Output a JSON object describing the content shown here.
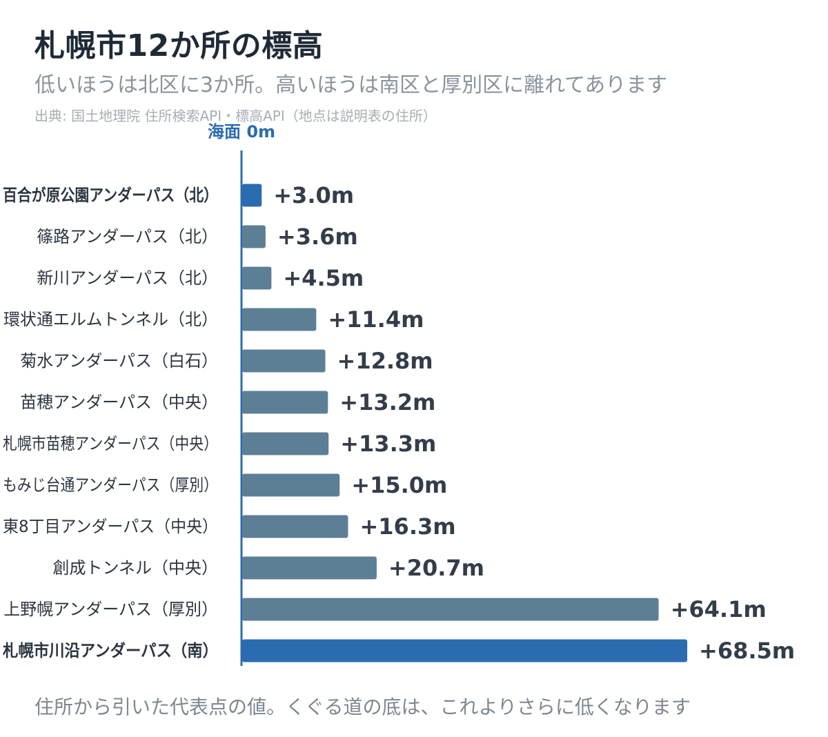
{
  "header": {
    "title": "札幌市12か所の標高",
    "subtitle": "低いほうは北区に3か所。高いほうは南区と厚別区に離れてあります",
    "source": "出典: 国土地理院 住所検索API・標高API（地点は説明表の住所）"
  },
  "footnote": "住所から引いた代表点の値。くぐる道の底は、これよりさらに低くなります",
  "colors": {
    "highlight": "#2b6cb0",
    "bar": "#5d7f96",
    "axis": "#2b6cb0"
  },
  "chart_data": {
    "type": "bar",
    "orientation": "horizontal",
    "baseline_label": "海面 0m",
    "unit": "m",
    "categories": [
      "百合が原公園アンダーパス（北）",
      "篠路アンダーパス（北）",
      "新川アンダーパス（北）",
      "環状通エルムトンネル（北）",
      "菊水アンダーパス（白石）",
      "苗穂アンダーパス（中央）",
      "札幌市苗穂アンダーパス（中央）",
      "もみじ台通アンダーパス（厚別）",
      "東8丁目アンダーパス（中央）",
      "創成トンネル（中央）",
      "上野幌アンダーパス（厚別）",
      "札幌市川沿アンダーパス（南）"
    ],
    "values": [
      3.0,
      3.6,
      4.5,
      11.4,
      12.8,
      13.2,
      13.3,
      15.0,
      16.3,
      20.7,
      64.1,
      68.5
    ],
    "value_labels": [
      "+3.0m",
      "+3.6m",
      "+4.5m",
      "+11.4m",
      "+12.8m",
      "+13.2m",
      "+13.3m",
      "+15.0m",
      "+16.3m",
      "+20.7m",
      "+64.1m",
      "+68.5m"
    ],
    "highlighted": [
      true,
      false,
      false,
      false,
      false,
      false,
      false,
      false,
      false,
      false,
      false,
      true
    ],
    "xlim": [
      0,
      68.5
    ],
    "grid": false,
    "legend": false
  }
}
